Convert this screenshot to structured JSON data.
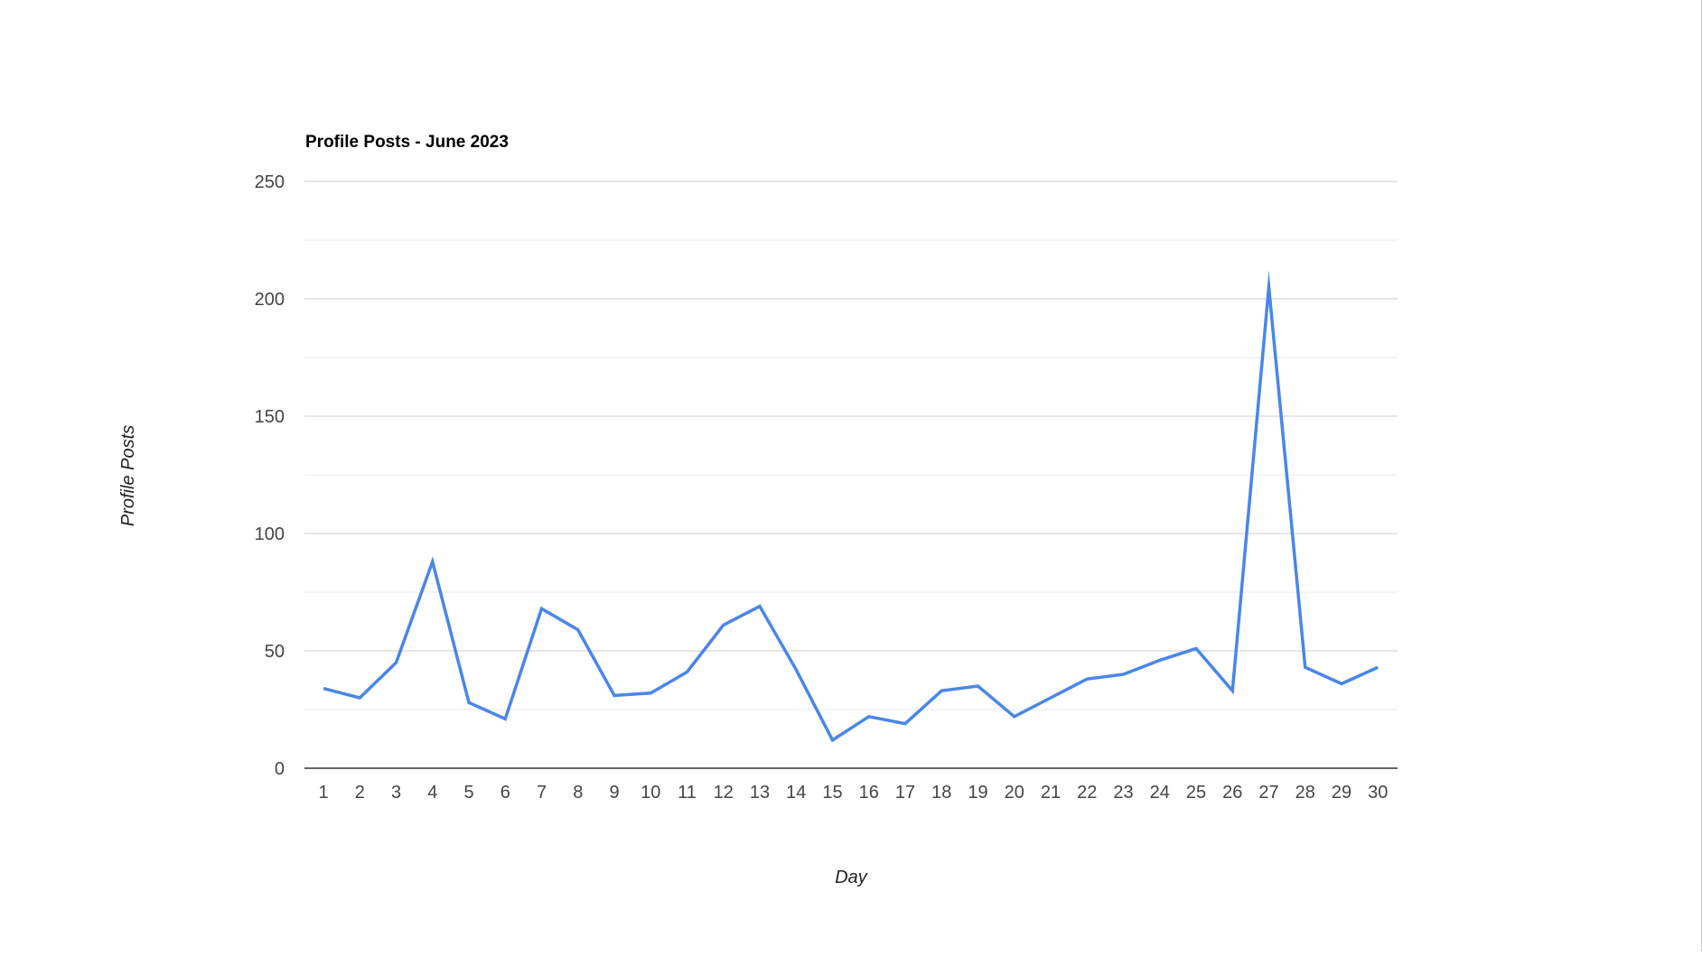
{
  "chart_data": {
    "type": "line",
    "title": "Profile Posts - June 2023",
    "xlabel": "Day",
    "ylabel": "Profile Posts",
    "x": [
      1,
      2,
      3,
      4,
      5,
      6,
      7,
      8,
      9,
      10,
      11,
      12,
      13,
      14,
      15,
      16,
      17,
      18,
      19,
      20,
      21,
      22,
      23,
      24,
      25,
      26,
      27,
      28,
      29,
      30
    ],
    "series": [
      {
        "name": "",
        "values": [
          34,
          30,
          45,
          88,
          28,
          21,
          68,
          59,
          31,
          32,
          41,
          61,
          69,
          42,
          12,
          22,
          19,
          33,
          35,
          22,
          30,
          38,
          40,
          46,
          51,
          33,
          205,
          43,
          36,
          43
        ]
      }
    ],
    "ylim": [
      0,
      250
    ],
    "yticks": [
      0,
      50,
      100,
      150,
      200,
      250
    ],
    "grid": true,
    "legend": "none",
    "colors": {
      "line": "#4a86e8",
      "major_grid": "#cccccc",
      "minor_grid": "#ebebeb",
      "baseline": "#333333",
      "tick_text": "#444444",
      "title_text": "#000000",
      "axis_title_text": "#222222"
    }
  }
}
